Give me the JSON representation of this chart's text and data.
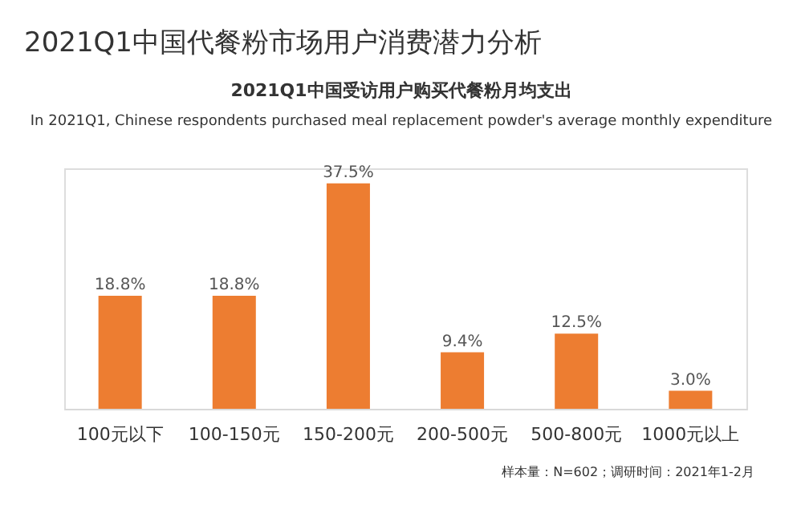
{
  "chart_data": {
    "type": "bar",
    "title": "2021Q1中国代餐粉市场用户消费潜力分析",
    "subtitle": "2021Q1中国受访用户购买代餐粉月均支出",
    "annotations": [
      "In 2021Q1, Chinese respondents purchased meal replacement powder's average monthly expenditure",
      "样本量：N=602；调研时间：2021年1-2月"
    ],
    "categories": [
      "100元以下",
      "100-150元",
      "150-200元",
      "200-500元",
      "500-800元",
      "1000元以上"
    ],
    "values": [
      18.8,
      18.8,
      37.5,
      9.4,
      12.5,
      3.0
    ],
    "value_labels": [
      "18.8%",
      "18.8%",
      "37.5%",
      "9.4%",
      "12.5%",
      "3.0%"
    ],
    "color": "#ed7d31",
    "ylim": [
      0,
      40
    ],
    "tick_labels": "x"
  }
}
